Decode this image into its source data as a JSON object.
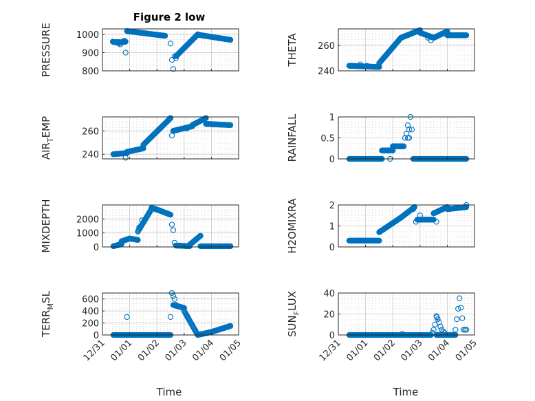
{
  "figure": {
    "title": "Figure 2 low",
    "marker_color": "#0072BD"
  },
  "chart_data": [
    {
      "type": "scatter",
      "ylabel": "PRESSURE",
      "title": "Figure 2 low",
      "xlim": [
        0,
        5
      ],
      "ylim": [
        800,
        1030
      ],
      "yticks": [
        800,
        900,
        1000
      ],
      "xticks": [
        "12/31",
        "01/01",
        "01/02",
        "01/03",
        "01/04",
        "01/05"
      ],
      "grid": "minor",
      "segments": [
        {
          "x": [
            0.4,
            0.6
          ],
          "y": [
            958,
            958
          ]
        },
        {
          "x": [
            0.6,
            0.85
          ],
          "y": [
            955,
            960
          ]
        },
        {
          "x": [
            0.9,
            2.3
          ],
          "y": [
            1018,
            992
          ]
        },
        {
          "x": [
            2.7,
            3.5
          ],
          "y": [
            880,
            1000
          ]
        },
        {
          "x": [
            3.5,
            4.7
          ],
          "y": [
            998,
            970
          ]
        }
      ],
      "points": [
        [
          0.38,
          960
        ],
        [
          0.45,
          958
        ],
        [
          0.52,
          955
        ],
        [
          0.6,
          950
        ],
        [
          0.65,
          945
        ],
        [
          0.7,
          955
        ],
        [
          0.75,
          960
        ],
        [
          0.8,
          965
        ],
        [
          0.85,
          900
        ],
        [
          2.5,
          950
        ],
        [
          2.55,
          860
        ],
        [
          2.6,
          810
        ],
        [
          2.65,
          880
        ],
        [
          2.7,
          870
        ]
      ]
    },
    {
      "type": "scatter",
      "ylabel": "THETA",
      "xlim": [
        0,
        5
      ],
      "ylim": [
        240,
        273
      ],
      "yticks": [
        240,
        260
      ],
      "xticks": [
        "12/31",
        "01/01",
        "01/02",
        "01/03",
        "01/04",
        "01/05"
      ],
      "grid": "minor",
      "segments": [
        {
          "x": [
            0.4,
            1.5
          ],
          "y": [
            244,
            243
          ]
        },
        {
          "x": [
            1.5,
            2.3
          ],
          "y": [
            246,
            266
          ]
        },
        {
          "x": [
            2.3,
            3.0
          ],
          "y": [
            266,
            272
          ]
        },
        {
          "x": [
            3.0,
            3.5
          ],
          "y": [
            270,
            266
          ]
        },
        {
          "x": [
            3.5,
            4.0
          ],
          "y": [
            266,
            271
          ]
        },
        {
          "x": [
            4.0,
            4.7
          ],
          "y": [
            268,
            268
          ]
        }
      ],
      "points": [
        [
          0.8,
          245
        ],
        [
          1.05,
          244
        ],
        [
          3.3,
          266
        ],
        [
          3.4,
          264
        ]
      ]
    },
    {
      "type": "scatter",
      "ylabel": "AIR_TEMP",
      "xlim": [
        0,
        5
      ],
      "ylim": [
        236,
        272
      ],
      "yticks": [
        240,
        260
      ],
      "xticks": [
        "12/31",
        "01/01",
        "01/02",
        "01/03",
        "01/04",
        "01/05"
      ],
      "grid": "minor",
      "segments": [
        {
          "x": [
            0.4,
            0.9
          ],
          "y": [
            240,
            241
          ]
        },
        {
          "x": [
            0.9,
            1.5
          ],
          "y": [
            242,
            245
          ]
        },
        {
          "x": [
            1.5,
            2.5
          ],
          "y": [
            248,
            271
          ]
        },
        {
          "x": [
            2.6,
            3.3
          ],
          "y": [
            260,
            264
          ]
        },
        {
          "x": [
            3.3,
            3.8
          ],
          "y": [
            265,
            271
          ]
        },
        {
          "x": [
            3.8,
            4.7
          ],
          "y": [
            266,
            265
          ]
        }
      ],
      "points": [
        [
          0.85,
          237
        ],
        [
          2.55,
          256
        ],
        [
          2.6,
          260
        ],
        [
          3.1,
          262
        ]
      ]
    },
    {
      "type": "scatter",
      "ylabel": "RAINFALL",
      "xlim": [
        0,
        5
      ],
      "ylim": [
        0,
        1
      ],
      "yticks": [
        0,
        0.5,
        1
      ],
      "xticks": [
        "12/31",
        "01/01",
        "01/02",
        "01/03",
        "01/04",
        "01/05"
      ],
      "grid": "minor",
      "segments": [
        {
          "x": [
            0.4,
            1.6
          ],
          "y": [
            0,
            0
          ]
        },
        {
          "x": [
            1.6,
            2.0
          ],
          "y": [
            0.2,
            0.2
          ]
        },
        {
          "x": [
            2.0,
            2.4
          ],
          "y": [
            0.3,
            0.3
          ]
        },
        {
          "x": [
            2.75,
            4.7
          ],
          "y": [
            0,
            0
          ]
        }
      ],
      "points": [
        [
          1.9,
          0
        ],
        [
          2.45,
          0.5
        ],
        [
          2.5,
          0.6
        ],
        [
          2.55,
          0.8
        ],
        [
          2.6,
          0.7
        ],
        [
          2.65,
          1.0
        ],
        [
          2.7,
          0.7
        ],
        [
          2.55,
          0.5
        ],
        [
          2.6,
          0.5
        ]
      ]
    },
    {
      "type": "scatter",
      "ylabel": "MIXDEPTH",
      "xlim": [
        0,
        5
      ],
      "ylim": [
        0,
        3000
      ],
      "yticks": [
        0,
        1000,
        2000
      ],
      "xticks": [
        "12/31",
        "01/01",
        "01/02",
        "01/03",
        "01/04",
        "01/05"
      ],
      "grid": "minor",
      "segments": [
        {
          "x": [
            0.4,
            0.7
          ],
          "y": [
            50,
            200
          ]
        },
        {
          "x": [
            0.7,
            1.0
          ],
          "y": [
            400,
            600
          ]
        },
        {
          "x": [
            1.0,
            1.3
          ],
          "y": [
            600,
            500
          ]
        },
        {
          "x": [
            1.3,
            1.8
          ],
          "y": [
            1100,
            2700
          ]
        },
        {
          "x": [
            1.8,
            2.1
          ],
          "y": [
            2800,
            2600
          ]
        },
        {
          "x": [
            2.1,
            2.5
          ],
          "y": [
            2600,
            2300
          ]
        },
        {
          "x": [
            2.7,
            3.2
          ],
          "y": [
            100,
            50
          ]
        },
        {
          "x": [
            3.2,
            3.6
          ],
          "y": [
            150,
            800
          ]
        },
        {
          "x": [
            3.6,
            4.7
          ],
          "y": [
            50,
            50
          ]
        }
      ],
      "points": [
        [
          2.55,
          1600
        ],
        [
          2.6,
          1200
        ],
        [
          2.65,
          300
        ],
        [
          2.7,
          100
        ],
        [
          1.35,
          1400
        ],
        [
          1.45,
          1900
        ]
      ]
    },
    {
      "type": "scatter",
      "ylabel": "H2OMIXRA",
      "xlim": [
        0,
        5
      ],
      "ylim": [
        0,
        2
      ],
      "yticks": [
        0,
        1,
        2
      ],
      "xticks": [
        "12/31",
        "01/01",
        "01/02",
        "01/03",
        "01/04",
        "01/05"
      ],
      "grid": "minor",
      "segments": [
        {
          "x": [
            0.4,
            1.5
          ],
          "y": [
            0.3,
            0.3
          ]
        },
        {
          "x": [
            1.5,
            2.3
          ],
          "y": [
            0.7,
            1.4
          ]
        },
        {
          "x": [
            2.3,
            2.8
          ],
          "y": [
            1.4,
            1.9
          ]
        },
        {
          "x": [
            2.9,
            3.5
          ],
          "y": [
            1.3,
            1.3
          ]
        },
        {
          "x": [
            3.5,
            4.0
          ],
          "y": [
            1.6,
            1.9
          ]
        },
        {
          "x": [
            4.0,
            4.7
          ],
          "y": [
            1.8,
            1.9
          ]
        }
      ],
      "points": [
        [
          2.75,
          1.8
        ],
        [
          2.85,
          1.2
        ],
        [
          3.0,
          1.5
        ],
        [
          3.6,
          1.2
        ],
        [
          4.7,
          2.0
        ]
      ]
    },
    {
      "type": "scatter",
      "ylabel": "TERR_MSL",
      "xlim": [
        0,
        5
      ],
      "ylim": [
        0,
        700
      ],
      "yticks": [
        0,
        200,
        400,
        600
      ],
      "xticks": [
        "12/31",
        "01/01",
        "01/02",
        "01/03",
        "01/04",
        "01/05"
      ],
      "grid": "minor",
      "segments": [
        {
          "x": [
            0.4,
            2.5
          ],
          "y": [
            0,
            0
          ]
        },
        {
          "x": [
            2.6,
            3.0
          ],
          "y": [
            500,
            450
          ]
        },
        {
          "x": [
            3.0,
            3.5
          ],
          "y": [
            400,
            0
          ]
        },
        {
          "x": [
            3.5,
            4.0
          ],
          "y": [
            0,
            50
          ]
        },
        {
          "x": [
            4.0,
            4.7
          ],
          "y": [
            50,
            150
          ]
        }
      ],
      "points": [
        [
          0.9,
          300
        ],
        [
          2.5,
          300
        ],
        [
          2.55,
          700
        ],
        [
          2.6,
          650
        ],
        [
          2.65,
          600
        ],
        [
          2.7,
          500
        ]
      ]
    },
    {
      "type": "scatter",
      "ylabel": "SUN_FLUX",
      "xlim": [
        0,
        5
      ],
      "ylim": [
        0,
        40
      ],
      "yticks": [
        0,
        20,
        40
      ],
      "xticks": [
        "12/31",
        "01/01",
        "01/02",
        "01/03",
        "01/04",
        "01/05"
      ],
      "grid": "minor",
      "segments": [
        {
          "x": [
            0.4,
            3.4
          ],
          "y": [
            0,
            0
          ]
        },
        {
          "x": [
            3.6,
            4.3
          ],
          "y": [
            0,
            0
          ]
        }
      ],
      "points": [
        [
          3.45,
          2
        ],
        [
          3.5,
          5
        ],
        [
          3.55,
          10
        ],
        [
          3.6,
          18
        ],
        [
          3.62,
          17
        ],
        [
          3.65,
          15
        ],
        [
          3.7,
          12
        ],
        [
          3.75,
          8
        ],
        [
          3.8,
          5
        ],
        [
          3.85,
          3
        ],
        [
          3.9,
          2
        ],
        [
          4.3,
          5
        ],
        [
          4.35,
          15
        ],
        [
          4.4,
          25
        ],
        [
          4.45,
          35
        ],
        [
          4.5,
          26
        ],
        [
          4.55,
          16
        ],
        [
          4.6,
          5
        ],
        [
          4.65,
          5
        ],
        [
          4.7,
          5
        ],
        [
          2.35,
          1
        ]
      ]
    }
  ],
  "xlabels": [
    "Time",
    "Time"
  ]
}
